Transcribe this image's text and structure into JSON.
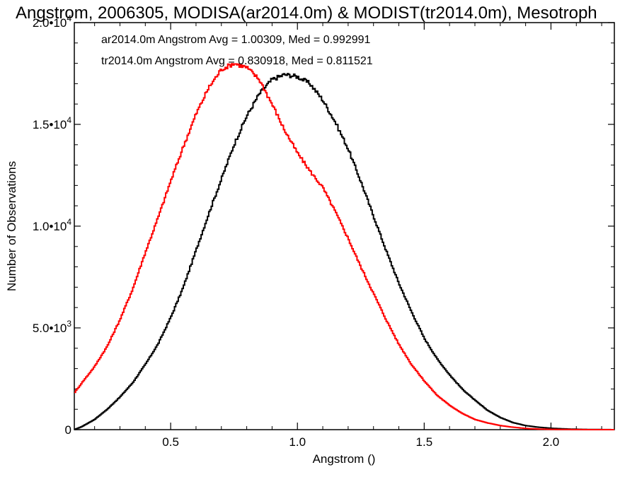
{
  "chart_data": {
    "type": "line",
    "step": true,
    "title": "Angstrom, 2006305, MODISA(ar2014.0m) & MODIST(tr2014.0m), Mesotroph",
    "xlabel": "Angstrom ()",
    "ylabel": "Number of Observations",
    "xlim": [
      0.12,
      2.25
    ],
    "ylim": [
      0,
      20000
    ],
    "xticks": [
      {
        "value": 0.5,
        "label": "0.5"
      },
      {
        "value": 1.0,
        "label": "1.0"
      },
      {
        "value": 1.5,
        "label": "1.5"
      },
      {
        "value": 2.0,
        "label": "2.0"
      }
    ],
    "yticks": [
      {
        "value": 0,
        "label": "0",
        "exp": ""
      },
      {
        "value": 5000,
        "label": "5.0•10",
        "exp": "3"
      },
      {
        "value": 10000,
        "label": "1.0•10",
        "exp": "4"
      },
      {
        "value": 15000,
        "label": "1.5•10",
        "exp": "4"
      },
      {
        "value": 20000,
        "label": "2.0•10",
        "exp": "4"
      }
    ],
    "grid": false,
    "annotations": [
      {
        "text": "ar2014.0m Angstrom Avg = 1.00309, Med = 0.992991",
        "color": "#000000"
      },
      {
        "text": "tr2014.0m Angstrom Avg = 0.830918, Med = 0.811521",
        "color": "#ff0000"
      }
    ],
    "series": [
      {
        "color": "#000000",
        "x": [
          0.12,
          0.15,
          0.2,
          0.25,
          0.3,
          0.35,
          0.4,
          0.45,
          0.5,
          0.55,
          0.6,
          0.65,
          0.7,
          0.75,
          0.8,
          0.85,
          0.9,
          0.95,
          1.0,
          1.05,
          1.1,
          1.15,
          1.2,
          1.25,
          1.3,
          1.35,
          1.4,
          1.45,
          1.5,
          1.55,
          1.6,
          1.65,
          1.7,
          1.75,
          1.8,
          1.85,
          1.9,
          1.95,
          2.0,
          2.05,
          2.1,
          2.15,
          2.2,
          2.25
        ],
        "values": [
          0,
          150,
          500,
          1000,
          1600,
          2300,
          3200,
          4200,
          5500,
          7000,
          8800,
          10600,
          12300,
          14000,
          15400,
          16500,
          17200,
          17450,
          17350,
          17000,
          16200,
          15100,
          13800,
          12200,
          10500,
          8800,
          7200,
          5800,
          4500,
          3500,
          2700,
          2000,
          1450,
          950,
          600,
          350,
          200,
          120,
          70,
          40,
          20,
          10,
          5,
          0
        ]
      },
      {
        "color": "#ff0000",
        "x": [
          0.12,
          0.15,
          0.2,
          0.25,
          0.3,
          0.35,
          0.4,
          0.45,
          0.5,
          0.55,
          0.6,
          0.65,
          0.7,
          0.75,
          0.8,
          0.85,
          0.9,
          0.95,
          1.0,
          1.05,
          1.1,
          1.15,
          1.2,
          1.25,
          1.3,
          1.35,
          1.4,
          1.45,
          1.5,
          1.55,
          1.6,
          1.65,
          1.7,
          1.75,
          1.8,
          1.85,
          1.9,
          1.95,
          2.0,
          2.05,
          2.1,
          2.15,
          2.2,
          2.25
        ],
        "values": [
          1800,
          2300,
          3100,
          4100,
          5400,
          6900,
          8700,
          10400,
          12200,
          13900,
          15500,
          16800,
          17700,
          18000,
          17800,
          17200,
          16000,
          14700,
          13600,
          12700,
          11900,
          10700,
          9400,
          8000,
          6700,
          5400,
          4200,
          3200,
          2400,
          1700,
          1200,
          800,
          500,
          330,
          200,
          120,
          60,
          30,
          15,
          8,
          3,
          1,
          0,
          0
        ]
      }
    ]
  }
}
